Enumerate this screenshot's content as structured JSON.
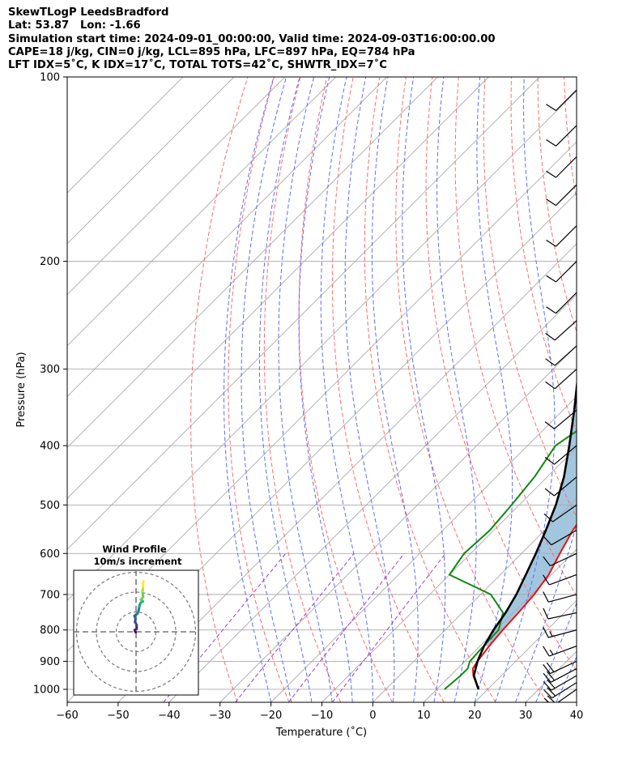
{
  "header": {
    "line1": "SkewTLogP LeedsBradford",
    "line2": "Lat: 53.87   Lon: -1.66",
    "line3": "Simulation start time: 2024-09-01_00:00:00, Valid time: 2024-09-03T16:00:00.00",
    "line4": "CAPE=18 j/kg, CIN=0 j/kg, LCL=895 hPa, LFC=897 hPa, EQ=784 hPa",
    "line5": "LFT IDX=5˚C, K IDX=17˚C, TOTAL TOTS=42˚C, SHWTR_IDX=7˚C"
  },
  "colors": {
    "temperature": "#ee1111",
    "dewpoint": "#118811",
    "parcel": "#000000",
    "cape_fill": "#a3c6df",
    "isotherm": "#aaaaaa",
    "dry_adiabat": "#ff6a6a",
    "moist_adiabat": "#5a6cff",
    "mixing_ratio": "#9b3fcf"
  },
  "chart_data": [
    {
      "type": "line",
      "title": "",
      "xlabel": "Temperature (˚C)",
      "ylabel": "Pressure (hPa)",
      "xlim": [
        -60,
        40
      ],
      "ylim": [
        1050,
        100
      ],
      "y_scale": "log",
      "skew": "skew-T",
      "grid": true,
      "x_ticks": [
        "−60",
        "−50",
        "−40",
        "−30",
        "−20",
        "−10",
        "0",
        "10",
        "20",
        "30",
        "40"
      ],
      "y_ticks": [
        "100",
        "200",
        "300",
        "400",
        "500",
        "600",
        "700",
        "800",
        "900",
        "1000"
      ],
      "series": [
        {
          "key": "temperature",
          "points": [
            [
              1000,
              18.2
            ],
            [
              950,
              14.5
            ],
            [
              925,
              13
            ],
            [
              900,
              12.5
            ],
            [
              850,
              11.8
            ],
            [
              800,
              11.3
            ],
            [
              750,
              11
            ],
            [
              700,
              10.5
            ],
            [
              650,
              9.5
            ],
            [
              600,
              7.5
            ],
            [
              550,
              5.5
            ],
            [
              500,
              4
            ],
            [
              450,
              2
            ],
            [
              400,
              -2.5
            ],
            [
              350,
              -7.5
            ],
            [
              300,
              -13
            ],
            [
              270,
              -15.5
            ],
            [
              250,
              -16.5
            ],
            [
              240,
              -16.5
            ],
            [
              225,
              -15
            ],
            [
              200,
              -12
            ],
            [
              170,
              -7.5
            ],
            [
              150,
              -5
            ],
            [
              130,
              -2
            ],
            [
              110,
              0
            ],
            [
              100,
              1.5
            ]
          ]
        },
        {
          "key": "dewpoint",
          "points": [
            [
              1000,
              11.5
            ],
            [
              950,
              12
            ],
            [
              925,
              12
            ],
            [
              900,
              11
            ],
            [
              850,
              10.7
            ],
            [
              800,
              10.5
            ],
            [
              750,
              8
            ],
            [
              700,
              2
            ],
            [
              650,
              -10
            ],
            [
              600,
              -11.3
            ],
            [
              550,
              -10.8
            ],
            [
              500,
              -11.5
            ],
            [
              450,
              -12.5
            ],
            [
              400,
              -14.5
            ],
            [
              375,
              -13
            ],
            [
              350,
              -12.8
            ],
            [
              300,
              -17
            ],
            [
              280,
              -18.2
            ],
            [
              260,
              -17.8
            ],
            [
              250,
              -17.8
            ],
            [
              230,
              -21
            ],
            [
              210,
              -22.5
            ],
            [
              200,
              -23.5
            ],
            [
              185,
              -25.5
            ],
            [
              165,
              -31
            ],
            [
              150,
              -33.5
            ],
            [
              140,
              -31
            ],
            [
              120,
              -26
            ],
            [
              100,
              -22
            ]
          ]
        },
        {
          "key": "parcel",
          "points": [
            [
              1000,
              18.2
            ],
            [
              950,
              14.6
            ],
            [
              900,
              12.5
            ],
            [
              850,
              10.8
            ],
            [
              800,
              9.5
            ],
            [
              750,
              8.5
            ],
            [
              700,
              7
            ],
            [
              650,
              5
            ],
            [
              600,
              2.8
            ],
            [
              550,
              0.2
            ],
            [
              500,
              -2.8
            ],
            [
              450,
              -6.7
            ],
            [
              400,
              -11.8
            ],
            [
              350,
              -17.8
            ],
            [
              300,
              -25
            ],
            [
              250,
              -34
            ],
            [
              200,
              -45
            ],
            [
              150,
              -59
            ],
            [
              100,
              -77
            ]
          ]
        }
      ]
    },
    {
      "type": "scatter",
      "title": "Wind Profile",
      "subtitle": "10m/s increment",
      "rings_ms": [
        10,
        20,
        30
      ],
      "colormap": "viridis"
    }
  ],
  "wind_barbs": [
    {
      "p": 1000,
      "dir": 235,
      "spd_kt": 21
    },
    {
      "p": 975,
      "dir": 238,
      "spd_kt": 23
    },
    {
      "p": 950,
      "dir": 240,
      "spd_kt": 22
    },
    {
      "p": 925,
      "dir": 242,
      "spd_kt": 22
    },
    {
      "p": 900,
      "dir": 245,
      "spd_kt": 20
    },
    {
      "p": 850,
      "dir": 250,
      "spd_kt": 18
    },
    {
      "p": 800,
      "dir": 255,
      "spd_kt": 16
    },
    {
      "p": 750,
      "dir": 258,
      "spd_kt": 13
    },
    {
      "p": 700,
      "dir": 255,
      "spd_kt": 14
    },
    {
      "p": 650,
      "dir": 250,
      "spd_kt": 14
    },
    {
      "p": 600,
      "dir": 245,
      "spd_kt": 13
    },
    {
      "p": 550,
      "dir": 240,
      "spd_kt": 12
    },
    {
      "p": 500,
      "dir": 235,
      "spd_kt": 12
    },
    {
      "p": 450,
      "dir": 230,
      "spd_kt": 11
    },
    {
      "p": 400,
      "dir": 230,
      "spd_kt": 11
    },
    {
      "p": 350,
      "dir": 230,
      "spd_kt": 11
    },
    {
      "p": 300,
      "dir": 228,
      "spd_kt": 11
    },
    {
      "p": 275,
      "dir": 228,
      "spd_kt": 11
    },
    {
      "p": 250,
      "dir": 228,
      "spd_kt": 11
    },
    {
      "p": 225,
      "dir": 225,
      "spd_kt": 11
    },
    {
      "p": 200,
      "dir": 225,
      "spd_kt": 11
    },
    {
      "p": 175,
      "dir": 225,
      "spd_kt": 12
    },
    {
      "p": 150,
      "dir": 225,
      "spd_kt": 12
    },
    {
      "p": 135,
      "dir": 225,
      "spd_kt": 12
    },
    {
      "p": 120,
      "dir": 225,
      "spd_kt": 12
    },
    {
      "p": 105,
      "dir": 225,
      "spd_kt": 12
    }
  ],
  "hodograph": {
    "u": [
      -0.2,
      -0.5,
      -0.7,
      0.3,
      0.3,
      -0.5,
      -0.3,
      -0.8,
      0.8,
      1.4,
      1.6,
      1.9,
      2.5,
      3.5,
      2.5,
      3.6,
      3.2,
      3.4,
      3.5,
      3.7
    ],
    "v": [
      -0.2,
      0.4,
      0.9,
      1.5,
      3.5,
      5.0,
      6.6,
      8.1,
      9.3,
      11.1,
      12.5,
      13.8,
      14.8,
      15.3,
      16.2,
      17.6,
      20.6,
      21.1,
      22.5,
      25.4
    ]
  }
}
